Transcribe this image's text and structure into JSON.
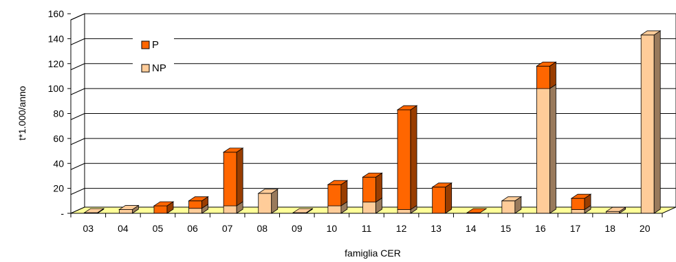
{
  "chart_data": {
    "type": "bar",
    "stacked": true,
    "three_d": true,
    "categories": [
      "03",
      "04",
      "05",
      "06",
      "07",
      "08",
      "09",
      "10",
      "11",
      "12",
      "13",
      "14",
      "15",
      "16",
      "17",
      "18",
      "20"
    ],
    "series": [
      {
        "name": "NP",
        "values": [
          0.5,
          3,
          0,
          4,
          6,
          16,
          0.5,
          6,
          9,
          3,
          0,
          0,
          10,
          100,
          3,
          1.5,
          143
        ]
      },
      {
        "name": "P",
        "values": [
          0,
          0,
          6,
          6,
          43,
          0,
          0,
          17,
          20,
          80,
          21,
          0,
          0,
          18,
          9,
          0,
          0
        ]
      }
    ],
    "colors": {
      "P": "#ff6600",
      "NP": "#ffcc99",
      "floor": "#ffff99"
    },
    "xlabel": "famiglia CER",
    "ylabel": "t*1.000/anno",
    "y_ticks": [
      "-",
      "20",
      "40",
      "60",
      "80",
      "100",
      "120",
      "140",
      "160"
    ],
    "ylim": [
      0,
      160
    ],
    "grid": true,
    "legend": [
      {
        "name": "P",
        "color": "#ff6600"
      },
      {
        "name": "NP",
        "color": "#ffcc99"
      }
    ],
    "legend_position": "top-left"
  }
}
